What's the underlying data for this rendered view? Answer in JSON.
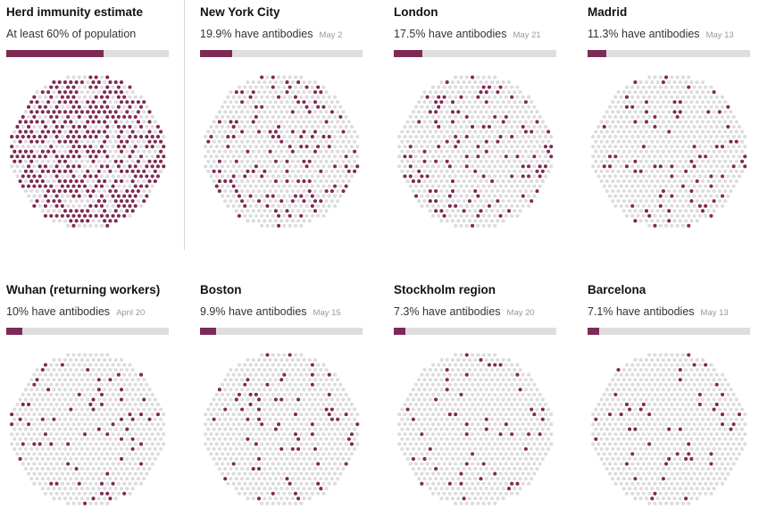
{
  "colors": {
    "positive": "#7e2b54",
    "negative": "#dcdcdc",
    "bar_track": "#dedede"
  },
  "chart_data": {
    "type": "dot-grid",
    "title": "",
    "panels": [
      {
        "title": "Herd immunity estimate",
        "subtitle": "At least 60% of population",
        "date": "",
        "value": 60
      },
      {
        "title": "New York City",
        "subtitle": "19.9% have antibodies",
        "date": "May 2",
        "value": 19.9
      },
      {
        "title": "London",
        "subtitle": "17.5% have antibodies",
        "date": "May 21",
        "value": 17.5
      },
      {
        "title": "Madrid",
        "subtitle": "11.3% have antibodies",
        "date": "May 13",
        "value": 11.3
      },
      {
        "title": "Wuhan (returning workers)",
        "subtitle": "10% have antibodies",
        "date": "April 20",
        "value": 10
      },
      {
        "title": "Boston",
        "subtitle": "9.9% have antibodies",
        "date": "May 15",
        "value": 9.9
      },
      {
        "title": "Stockholm region",
        "subtitle": "7.3% have antibodies",
        "date": "May 20",
        "value": 7.3
      },
      {
        "title": "Barcelona",
        "subtitle": "7.1% have antibodies",
        "date": "May 13",
        "value": 7.1
      }
    ]
  }
}
